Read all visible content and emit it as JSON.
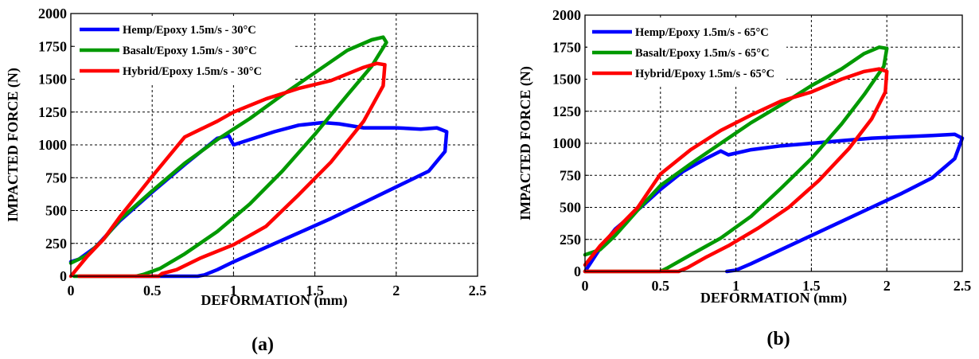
{
  "chart_data": [
    {
      "type": "line",
      "panel_label": "(a)",
      "xlabel": "DEFORMATION (mm)",
      "ylabel": "IMPACTED FORCE (N)",
      "xlim": [
        0,
        2.5
      ],
      "ylim": [
        0,
        2000
      ],
      "xticks": [
        0,
        0.5,
        1,
        1.5,
        2,
        2.5
      ],
      "xtick_labels": [
        "0",
        "0.5",
        "1",
        "1.5",
        "2",
        "2.5"
      ],
      "yticks": [
        0,
        250,
        500,
        750,
        1000,
        1250,
        1500,
        1750,
        2000
      ],
      "ytick_labels": [
        "0",
        "250",
        "500",
        "750",
        "1000",
        "1250",
        "1500",
        "1750",
        "2000"
      ],
      "grid": "dashed",
      "legend_position": "top-left",
      "series": [
        {
          "name": "Hemp/Epoxy 1.5m/s - 30°C",
          "color": "#0000ff",
          "x": [
            0,
            0.05,
            0.15,
            0.3,
            0.5,
            0.7,
            0.9,
            0.97,
            1.0,
            1.1,
            1.25,
            1.4,
            1.55,
            1.65,
            1.8,
            2.0,
            2.15,
            2.25,
            2.31,
            2.3,
            2.2,
            2.0,
            1.8,
            1.6,
            1.4,
            1.2,
            1.0,
            0.9,
            0.82,
            0.78,
            0.5,
            0.4
          ],
          "y": [
            110,
            130,
            220,
            420,
            640,
            850,
            1050,
            1070,
            1000,
            1040,
            1100,
            1150,
            1170,
            1160,
            1130,
            1130,
            1120,
            1130,
            1100,
            950,
            800,
            680,
            560,
            440,
            330,
            220,
            110,
            50,
            10,
            0,
            0,
            0
          ]
        },
        {
          "name": "Basalt/Epoxy 1.5m/s - 30°C",
          "color": "#009900",
          "x": [
            0,
            0.1,
            0.2,
            0.3,
            0.5,
            0.7,
            0.9,
            1.1,
            1.3,
            1.5,
            1.7,
            1.85,
            1.92,
            1.94,
            1.85,
            1.7,
            1.5,
            1.3,
            1.1,
            0.9,
            0.7,
            0.55,
            0.45,
            0.4,
            0.25,
            0.1,
            0.02
          ],
          "y": [
            100,
            160,
            280,
            430,
            650,
            860,
            1040,
            1200,
            1380,
            1550,
            1720,
            1800,
            1820,
            1780,
            1600,
            1380,
            1080,
            800,
            550,
            340,
            170,
            60,
            15,
            0,
            0,
            0,
            0
          ]
        },
        {
          "name": "Hybrid/Epoxy 1.5m/s - 30°C",
          "color": "#ff0000",
          "x": [
            0,
            0.1,
            0.2,
            0.3,
            0.5,
            0.7,
            0.8,
            0.9,
            1.0,
            1.2,
            1.4,
            1.6,
            1.8,
            1.88,
            1.93,
            1.92,
            1.8,
            1.6,
            1.4,
            1.2,
            1.0,
            0.8,
            0.65,
            0.56,
            0.54,
            0.3,
            0.05
          ],
          "y": [
            0,
            150,
            280,
            450,
            760,
            1060,
            1120,
            1180,
            1250,
            1350,
            1430,
            1490,
            1590,
            1620,
            1610,
            1450,
            1180,
            870,
            620,
            380,
            240,
            140,
            50,
            20,
            0,
            0,
            0
          ]
        }
      ]
    },
    {
      "type": "line",
      "panel_label": "(b)",
      "xlabel": "DEFORMATION (mm)",
      "ylabel": "IMPACTED FORCE (N)",
      "xlim": [
        0,
        2.5
      ],
      "ylim": [
        0,
        2000
      ],
      "xticks": [
        0,
        0.5,
        1,
        1.5,
        2,
        2.5
      ],
      "xtick_labels": [
        "0",
        "0.5",
        "1",
        "1.5",
        "2",
        "2.5"
      ],
      "yticks": [
        0,
        250,
        500,
        750,
        1000,
        1250,
        1500,
        1750,
        2000
      ],
      "ytick_labels": [
        "0",
        "250",
        "500",
        "750",
        "1000",
        "1250",
        "1500",
        "1750",
        "2000"
      ],
      "grid": "dashed",
      "legend_position": "top-left",
      "series": [
        {
          "name": "Hemp/Epoxy 1.5m/s - 65°C",
          "color": "#0000ff",
          "x": [
            0,
            0.1,
            0.2,
            0.35,
            0.5,
            0.65,
            0.8,
            0.9,
            0.95,
            1.1,
            1.3,
            1.5,
            1.7,
            1.9,
            2.1,
            2.3,
            2.45,
            2.5,
            2.45,
            2.3,
            2.1,
            1.9,
            1.7,
            1.5,
            1.3,
            1.1,
            1.0,
            0.94
          ],
          "y": [
            0,
            180,
            330,
            480,
            640,
            780,
            880,
            940,
            910,
            950,
            980,
            1000,
            1020,
            1040,
            1050,
            1060,
            1070,
            1040,
            880,
            730,
            610,
            500,
            390,
            280,
            170,
            60,
            10,
            0
          ]
        },
        {
          "name": "Basalt/Epoxy 1.5m/s - 65°C",
          "color": "#009900",
          "x": [
            0,
            0.1,
            0.2,
            0.35,
            0.5,
            0.7,
            0.9,
            1.1,
            1.3,
            1.5,
            1.7,
            1.85,
            1.95,
            2.0,
            1.98,
            1.85,
            1.7,
            1.5,
            1.3,
            1.1,
            0.9,
            0.7,
            0.55,
            0.5,
            0.3,
            0.1,
            0
          ],
          "y": [
            130,
            170,
            280,
            480,
            670,
            840,
            1000,
            1160,
            1300,
            1450,
            1580,
            1700,
            1750,
            1740,
            1600,
            1380,
            1150,
            880,
            650,
            430,
            260,
            130,
            30,
            0,
            0,
            0,
            0
          ]
        },
        {
          "name": "Hybrid/Epoxy 1.5m/s - 65°C",
          "color": "#ff0000",
          "x": [
            0,
            0.1,
            0.2,
            0.35,
            0.5,
            0.7,
            0.9,
            1.1,
            1.3,
            1.5,
            1.7,
            1.85,
            1.95,
            2.0,
            1.99,
            1.9,
            1.75,
            1.55,
            1.35,
            1.15,
            0.95,
            0.8,
            0.68,
            0.62,
            0.5,
            0.2,
            0
          ],
          "y": [
            50,
            200,
            320,
            500,
            760,
            950,
            1100,
            1220,
            1330,
            1400,
            1500,
            1560,
            1580,
            1560,
            1400,
            1190,
            960,
            710,
            500,
            340,
            200,
            110,
            30,
            0,
            0,
            0,
            0
          ]
        }
      ]
    }
  ]
}
